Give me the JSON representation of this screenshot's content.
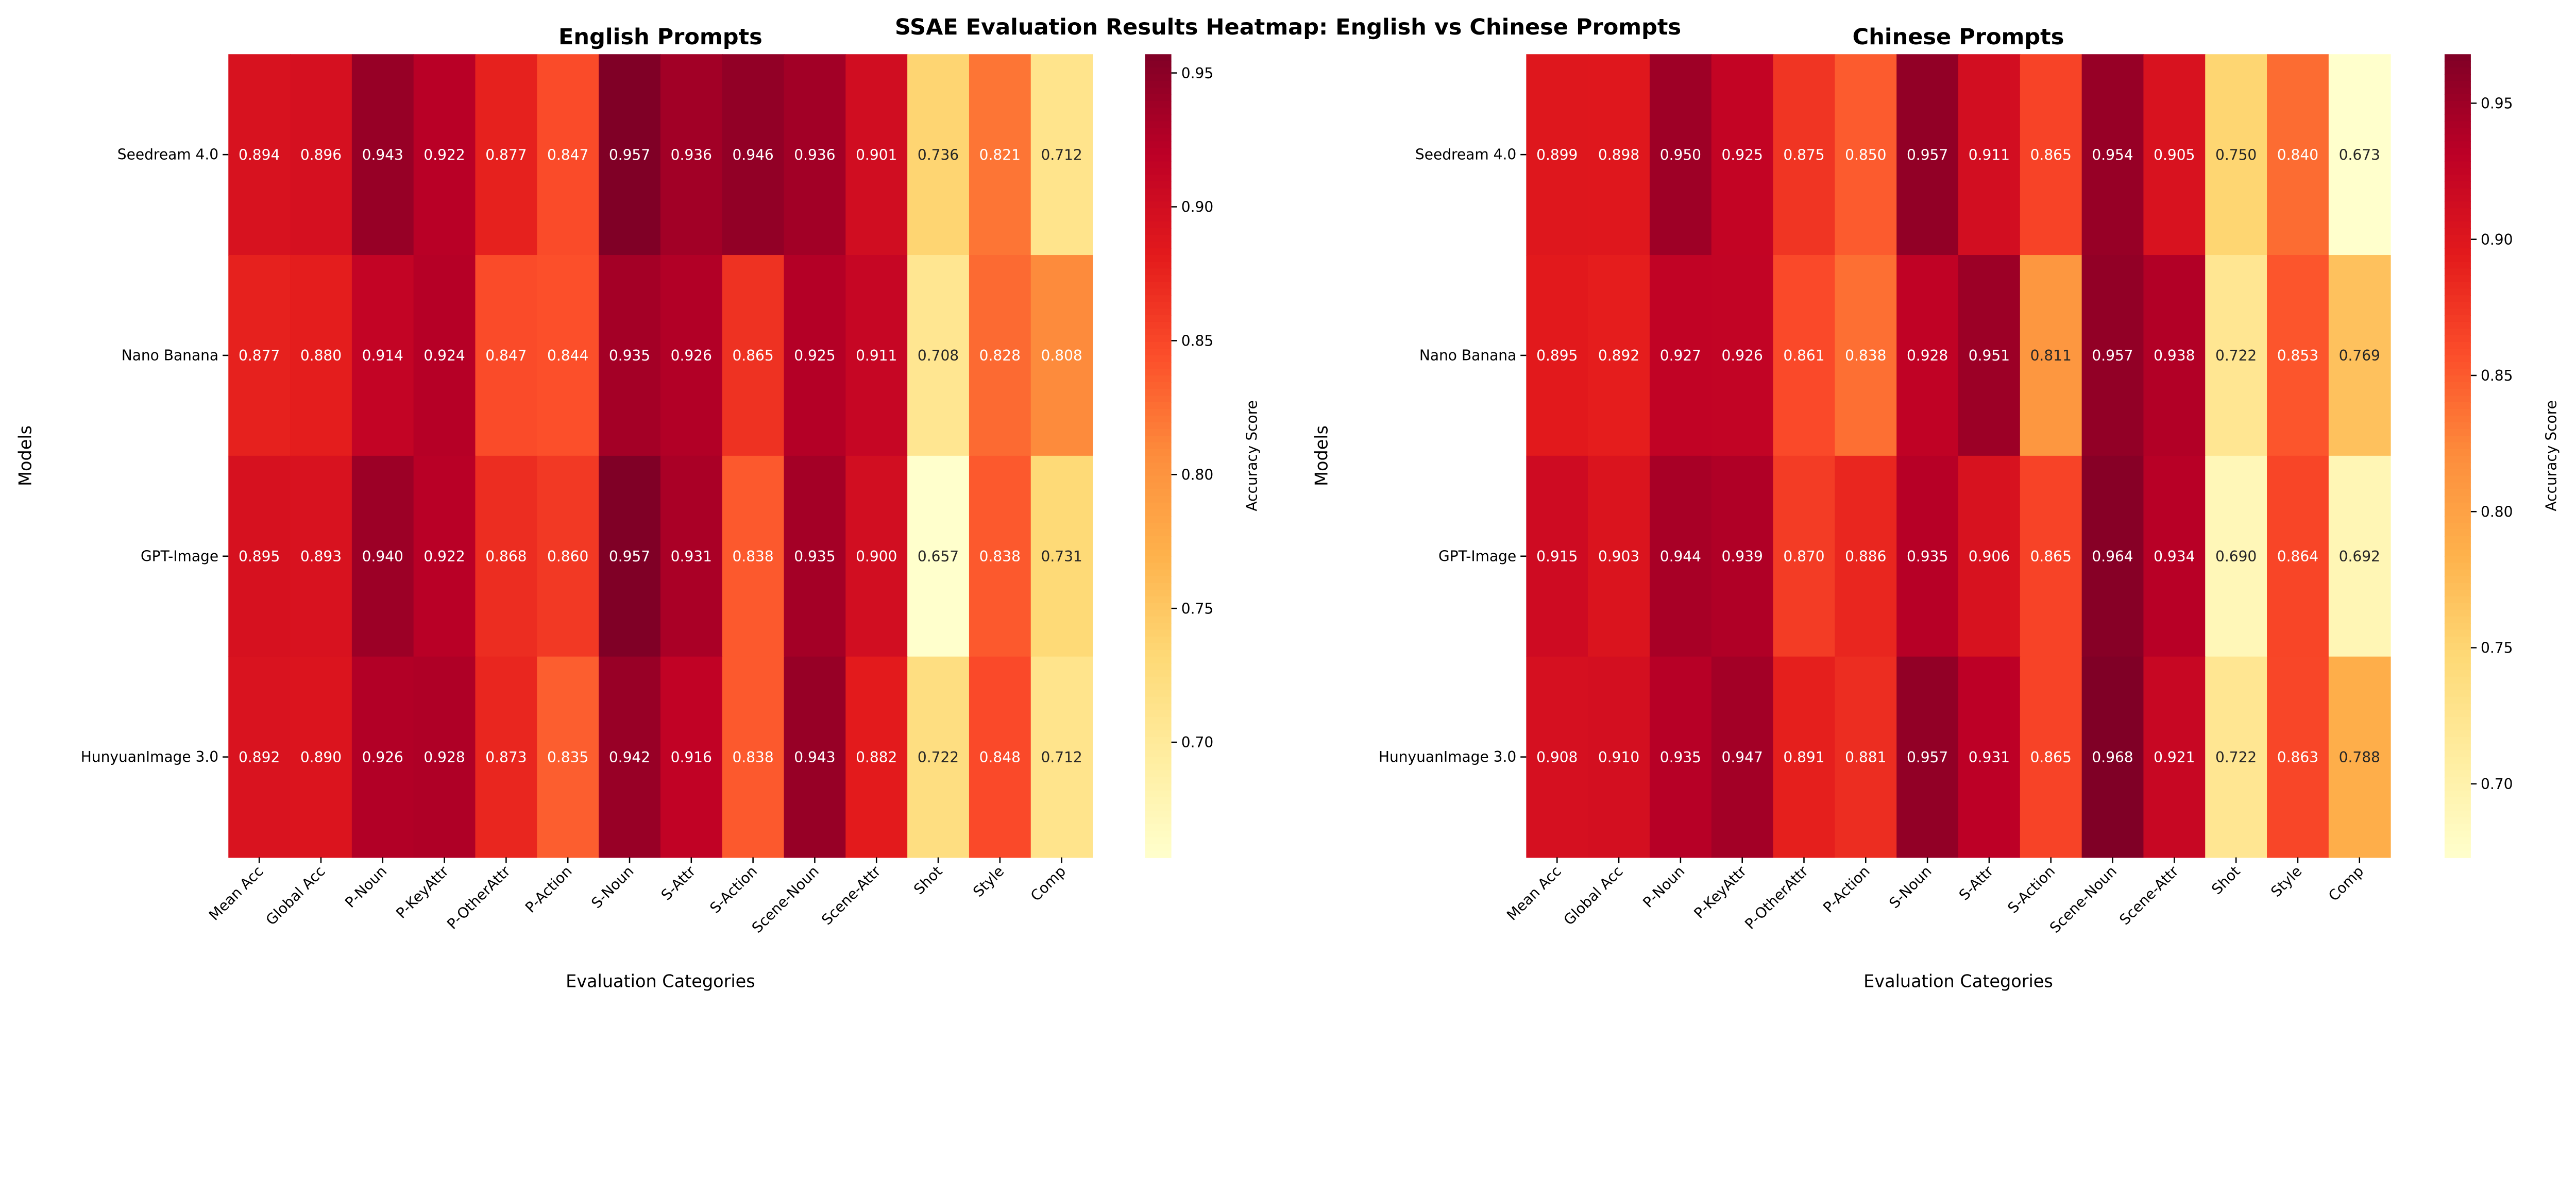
{
  "chart_data": {
    "title": "SSAE Evaluation Results Heatmap: English vs Chinese Prompts",
    "colormap": [
      "#ffffcc",
      "#ffeda0",
      "#fed976",
      "#feb24c",
      "#fd8d3c",
      "#fc4e2a",
      "#e31a1c",
      "#bd0026",
      "#800026"
    ],
    "panels": [
      {
        "type": "heatmap",
        "title": "English Prompts",
        "xlabel": "Evaluation Categories",
        "ylabel": "Models",
        "colorbar_label": "Accuracy Score",
        "colorbar_ticks": [
          "0.70",
          "0.75",
          "0.80",
          "0.85",
          "0.90",
          "0.95"
        ],
        "vlim": [
          0.657,
          0.957
        ],
        "rows": [
          "Seedream 4.0",
          "Nano Banana",
          "GPT-Image",
          "HunyuanImage 3.0"
        ],
        "columns": [
          "Mean Acc",
          "Global Acc",
          "P-Noun",
          "P-KeyAttr",
          "P-OtherAttr",
          "P-Action",
          "S-Noun",
          "S-Attr",
          "S-Action",
          "Scene-Noun",
          "Scene-Attr",
          "Shot",
          "Style",
          "Comp"
        ],
        "values": [
          [
            "0.894",
            "0.896",
            "0.943",
            "0.922",
            "0.877",
            "0.847",
            "0.957",
            "0.936",
            "0.946",
            "0.936",
            "0.901",
            "0.736",
            "0.821",
            "0.712"
          ],
          [
            "0.877",
            "0.880",
            "0.914",
            "0.924",
            "0.847",
            "0.844",
            "0.935",
            "0.926",
            "0.865",
            "0.925",
            "0.911",
            "0.708",
            "0.828",
            "0.808"
          ],
          [
            "0.895",
            "0.893",
            "0.940",
            "0.922",
            "0.868",
            "0.860",
            "0.957",
            "0.931",
            "0.838",
            "0.935",
            "0.900",
            "0.657",
            "0.838",
            "0.731"
          ],
          [
            "0.892",
            "0.890",
            "0.926",
            "0.928",
            "0.873",
            "0.835",
            "0.942",
            "0.916",
            "0.838",
            "0.943",
            "0.882",
            "0.722",
            "0.848",
            "0.712"
          ]
        ]
      },
      {
        "type": "heatmap",
        "title": "Chinese Prompts",
        "xlabel": "Evaluation Categories",
        "ylabel": "Models",
        "colorbar_label": "Accuracy Score",
        "colorbar_ticks": [
          "0.70",
          "0.75",
          "0.80",
          "0.85",
          "0.90",
          "0.95"
        ],
        "vlim": [
          0.673,
          0.968
        ],
        "rows": [
          "Seedream 4.0",
          "Nano Banana",
          "GPT-Image",
          "HunyuanImage 3.0"
        ],
        "columns": [
          "Mean Acc",
          "Global Acc",
          "P-Noun",
          "P-KeyAttr",
          "P-OtherAttr",
          "P-Action",
          "S-Noun",
          "S-Attr",
          "S-Action",
          "Scene-Noun",
          "Scene-Attr",
          "Shot",
          "Style",
          "Comp"
        ],
        "values": [
          [
            "0.899",
            "0.898",
            "0.950",
            "0.925",
            "0.875",
            "0.850",
            "0.957",
            "0.911",
            "0.865",
            "0.954",
            "0.905",
            "0.750",
            "0.840",
            "0.673"
          ],
          [
            "0.895",
            "0.892",
            "0.927",
            "0.926",
            "0.861",
            "0.838",
            "0.928",
            "0.951",
            "0.811",
            "0.957",
            "0.938",
            "0.722",
            "0.853",
            "0.769"
          ],
          [
            "0.915",
            "0.903",
            "0.944",
            "0.939",
            "0.870",
            "0.886",
            "0.935",
            "0.906",
            "0.865",
            "0.964",
            "0.934",
            "0.690",
            "0.864",
            "0.692"
          ],
          [
            "0.908",
            "0.910",
            "0.935",
            "0.947",
            "0.891",
            "0.881",
            "0.957",
            "0.931",
            "0.865",
            "0.968",
            "0.921",
            "0.722",
            "0.863",
            "0.788"
          ]
        ]
      }
    ]
  }
}
